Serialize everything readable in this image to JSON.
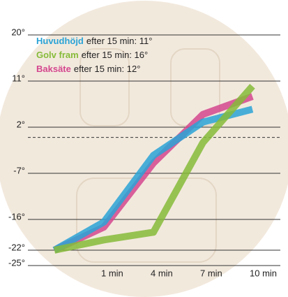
{
  "chart_data": {
    "type": "line",
    "categories": [
      null,
      "1 min",
      "4 min",
      "7 min",
      "10 min"
    ],
    "series": [
      {
        "name": "Baksäte",
        "note": "efter 15 min: 12°",
        "color": "#d4468e",
        "values": [
          -22,
          -17.5,
          -5,
          4.5,
          8
        ]
      },
      {
        "name": "Huvudhöjd",
        "note": "efter 15 min: 11°",
        "color": "#2aa3d6",
        "values": [
          -22,
          -16.5,
          -3.5,
          3,
          5.5
        ]
      },
      {
        "name": "Golv fram",
        "note": "efter 15 min: 16°",
        "color": "#86bb3a",
        "values": [
          -22,
          -20,
          -18.5,
          -1,
          10
        ]
      }
    ],
    "legend_order": [
      1,
      2,
      0
    ],
    "ylim": [
      -25,
      20
    ],
    "yticks": [
      {
        "value": 20,
        "label": "20°"
      },
      {
        "value": 11,
        "label": "11°"
      },
      {
        "value": 2,
        "label": "2°"
      },
      {
        "value": -7,
        "label": "-7°"
      },
      {
        "value": -16,
        "label": "-16°"
      },
      {
        "value": -22,
        "label": "-22°"
      },
      {
        "value": -25,
        "label": "-25°"
      }
    ],
    "reference_line": 0,
    "grid": true
  }
}
